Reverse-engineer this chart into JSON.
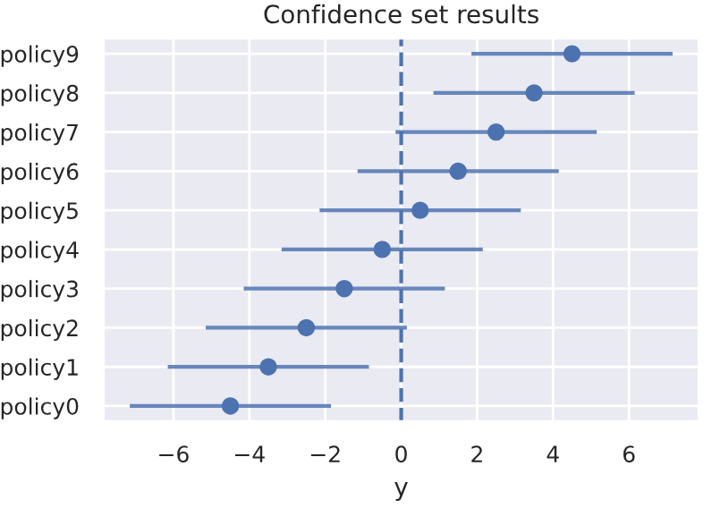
{
  "chart_data": {
    "type": "scatter",
    "title": "Confidence set results",
    "xlabel": "y",
    "orientation": "horizontal",
    "categories": [
      "policy9",
      "policy8",
      "policy7",
      "policy6",
      "policy5",
      "policy4",
      "policy3",
      "policy2",
      "policy1",
      "policy0"
    ],
    "values": [
      4.5,
      3.5,
      2.5,
      1.5,
      0.5,
      -0.5,
      -1.5,
      -2.5,
      -3.5,
      -4.5
    ],
    "errors": [
      2.65,
      2.65,
      2.65,
      2.65,
      2.65,
      2.65,
      2.65,
      2.65,
      2.65,
      2.65
    ],
    "color": "#4c72b0",
    "marker": "circle",
    "grid": true,
    "xlim": [
      -7.85,
      7.85
    ],
    "xticks": [
      {
        "value": -6,
        "label": "−6"
      },
      {
        "value": -4,
        "label": "−4"
      },
      {
        "value": -2,
        "label": "−2"
      },
      0,
      2,
      4,
      6
    ],
    "ref_lines": [
      {
        "axis": "x",
        "value": 0,
        "color": "#4c72b0",
        "line_style": "dashed"
      }
    ]
  }
}
